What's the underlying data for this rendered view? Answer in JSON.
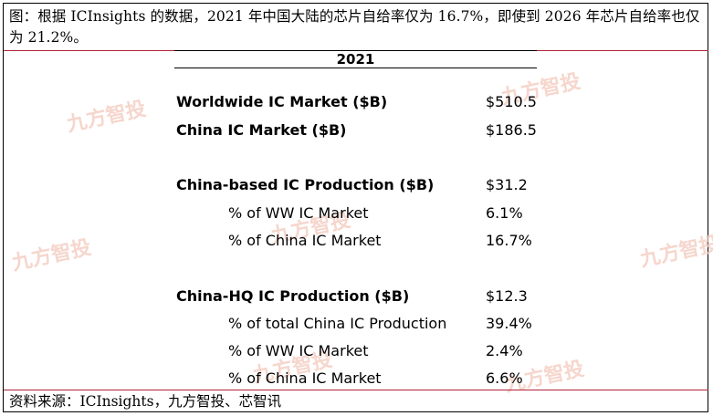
{
  "caption": "图：根据 ICInsights 的数据，2021 年中国大陆的芯片自给率仅为 16.7%，即使到 2026 年芯片自给率也仅为 21.2%。",
  "table": {
    "year": "2021",
    "rows": [
      {
        "label": "Worldwide IC Market ($B)",
        "value": "$510.5",
        "style": "bold"
      },
      {
        "label": "China IC Market ($B)",
        "value": "$186.5",
        "style": "bold"
      },
      {
        "label": "China-based IC Production ($B)",
        "value": "$31.2",
        "style": "bold"
      },
      {
        "label": "% of WW IC Market",
        "value": "6.1%",
        "style": "sub"
      },
      {
        "label": "% of China IC Market",
        "value": "16.7%",
        "style": "sub"
      },
      {
        "label": "China-HQ IC Production ($B)",
        "value": "$12.3",
        "style": "bold"
      },
      {
        "label": "% of total China IC Production",
        "value": "39.4%",
        "style": "sub"
      },
      {
        "label": "% of WW IC Market",
        "value": "2.4%",
        "style": "sub"
      },
      {
        "label": "% of China IC Market",
        "value": "6.6%",
        "style": "sub"
      }
    ]
  },
  "source": "资料来源：ICInsights，九方智投、芯智讯",
  "watermark": "九方智投"
}
